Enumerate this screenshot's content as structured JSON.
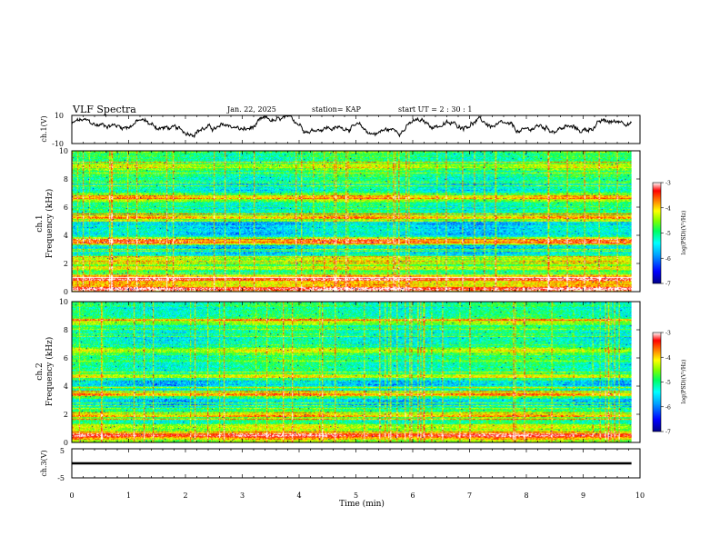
{
  "header": {
    "title": "VLF Spectra",
    "date": "Jan. 22, 2025",
    "station": "station= KAP",
    "start_time": "start UT =  2 : 30 : 1"
  },
  "chart_data": [
    {
      "type": "line",
      "name": "ch1-waveform",
      "ylabel": "ch.1(V)",
      "ylim": [
        -10,
        10
      ],
      "yticks": [
        "10",
        "-10"
      ],
      "xlim": [
        0,
        10
      ],
      "approx_mean_v": 2,
      "approx_amplitude_v": 5
    },
    {
      "type": "heatmap",
      "name": "ch1-spectrogram",
      "ylabel": "ch.1\nFrequency (kHz)",
      "ylim": [
        0,
        10
      ],
      "yticks": [
        "0",
        "2",
        "4",
        "6",
        "8",
        "10"
      ],
      "xlim": [
        0,
        10
      ],
      "colorbar": {
        "label": "log(PSD)(V²/Hz)",
        "range": [
          -7,
          -3
        ],
        "ticks": [
          "-3",
          "-4",
          "-5",
          "-6",
          "-7"
        ],
        "colors": [
          "#000088",
          "#0000ff",
          "#00a0ff",
          "#00ffff",
          "#00ff60",
          "#80ff00",
          "#ffff00",
          "#ff8000",
          "#ff0000",
          "#ffffff"
        ]
      },
      "dominant_bands": [
        {
          "kHz": 0.2,
          "level": "high"
        },
        {
          "kHz": 0.9,
          "level": "high"
        },
        {
          "kHz": 1.7,
          "level": "mid-high"
        },
        {
          "kHz": 2.3,
          "level": "mid-high"
        },
        {
          "kHz": 3.6,
          "level": "high"
        },
        {
          "kHz": 5.3,
          "level": "high"
        },
        {
          "kHz": 6.7,
          "level": "high"
        },
        {
          "kHz": 8.9,
          "level": "mid-high"
        }
      ]
    },
    {
      "type": "heatmap",
      "name": "ch2-spectrogram",
      "ylabel": "ch.2\nFrequency (kHz)",
      "ylim": [
        0,
        10
      ],
      "yticks": [
        "0",
        "2",
        "4",
        "6",
        "8",
        "10"
      ],
      "xlim": [
        0,
        10
      ],
      "colorbar": {
        "label": "log(PSD)(V²/Hz)",
        "range": [
          -7,
          -3
        ],
        "ticks": [
          "-3",
          "-4",
          "-5",
          "-6",
          "-7"
        ]
      },
      "dominant_bands": [
        {
          "kHz": 0.5,
          "level": "high"
        },
        {
          "kHz": 1.9,
          "level": "high"
        },
        {
          "kHz": 3.4,
          "level": "high"
        },
        {
          "kHz": 4.7,
          "level": "high"
        },
        {
          "kHz": 6.5,
          "level": "mid-high"
        },
        {
          "kHz": 8.6,
          "level": "mid-high"
        }
      ]
    },
    {
      "type": "line",
      "name": "ch3-waveform",
      "ylabel": "ch.3(V)",
      "ylim": [
        -5,
        5
      ],
      "yticks": [
        "5",
        "-5"
      ],
      "xlim": [
        0,
        10
      ],
      "approx_mean_v": 0,
      "approx_amplitude_v": 0.4
    }
  ],
  "x_axis": {
    "label": "Time (min)",
    "ticks": [
      "0",
      "1",
      "2",
      "3",
      "4",
      "5",
      "6",
      "7",
      "8",
      "9",
      "10"
    ],
    "data_end_min": 9.85
  }
}
